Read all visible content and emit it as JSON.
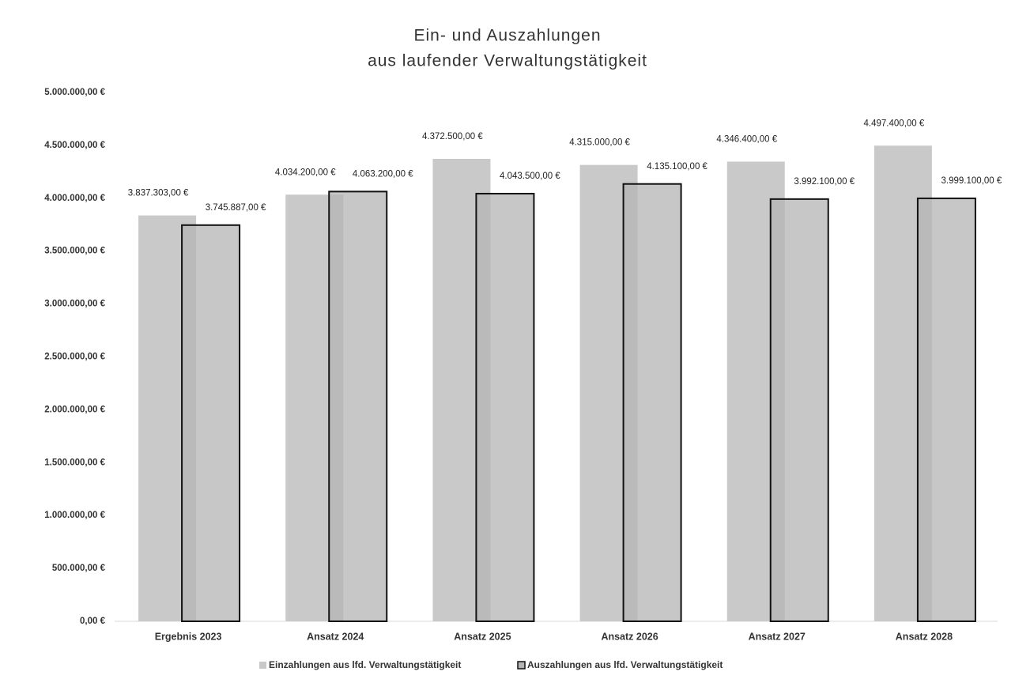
{
  "chart_data": {
    "type": "bar",
    "title": [
      "Ein- und Auszahlungen",
      "aus laufender Verwaltungstätigkeit"
    ],
    "categories": [
      "Ergebnis 2023",
      "Ansatz 2024",
      "Ansatz 2025",
      "Ansatz 2026",
      "Ansatz 2027",
      "Ansatz 2028"
    ],
    "series": [
      {
        "name": "Einzahlungen aus lfd. Verwaltungstätigkeit",
        "color": "#c9c9c9",
        "values": [
          3837303,
          4034200,
          4372500,
          4315000,
          4346400,
          4497400
        ],
        "value_labels": [
          "3.837.303,00 €",
          "4.034.200,00 €",
          "4.372.500,00 €",
          "4.315.000,00 €",
          "4.346.400,00 €",
          "4.497.400,00 €"
        ]
      },
      {
        "name": "Auszahlungen aus lfd. Verwaltungstätigkeit",
        "color": "#b4b4b4",
        "values": [
          3745887,
          4063200,
          4043500,
          4135100,
          3992100,
          3999100
        ],
        "value_labels": [
          "3.745.887,00 €",
          "4.063.200,00 €",
          "4.043.500,00 €",
          "4.135.100,00 €",
          "3.992.100,00 €",
          "3.999.100,00 €"
        ]
      }
    ],
    "ylim": [
      0,
      5000000
    ],
    "yticks": [
      {
        "value": 0,
        "label": "0,00 €"
      },
      {
        "value": 500000,
        "label": "500.000,00 €"
      },
      {
        "value": 1000000,
        "label": "1.000.000,00 €"
      },
      {
        "value": 1500000,
        "label": "1.500.000,00 €"
      },
      {
        "value": 2000000,
        "label": "2.000.000,00 €"
      },
      {
        "value": 2500000,
        "label": "2.500.000,00 €"
      },
      {
        "value": 3000000,
        "label": "3.000.000,00 €"
      },
      {
        "value": 3500000,
        "label": "3.500.000,00 €"
      },
      {
        "value": 4000000,
        "label": "4.000.000,00 €"
      },
      {
        "value": 4500000,
        "label": "4.500.000,00 €"
      },
      {
        "value": 5000000,
        "label": "5.000.000,00 €"
      }
    ],
    "legend": "bottom"
  }
}
